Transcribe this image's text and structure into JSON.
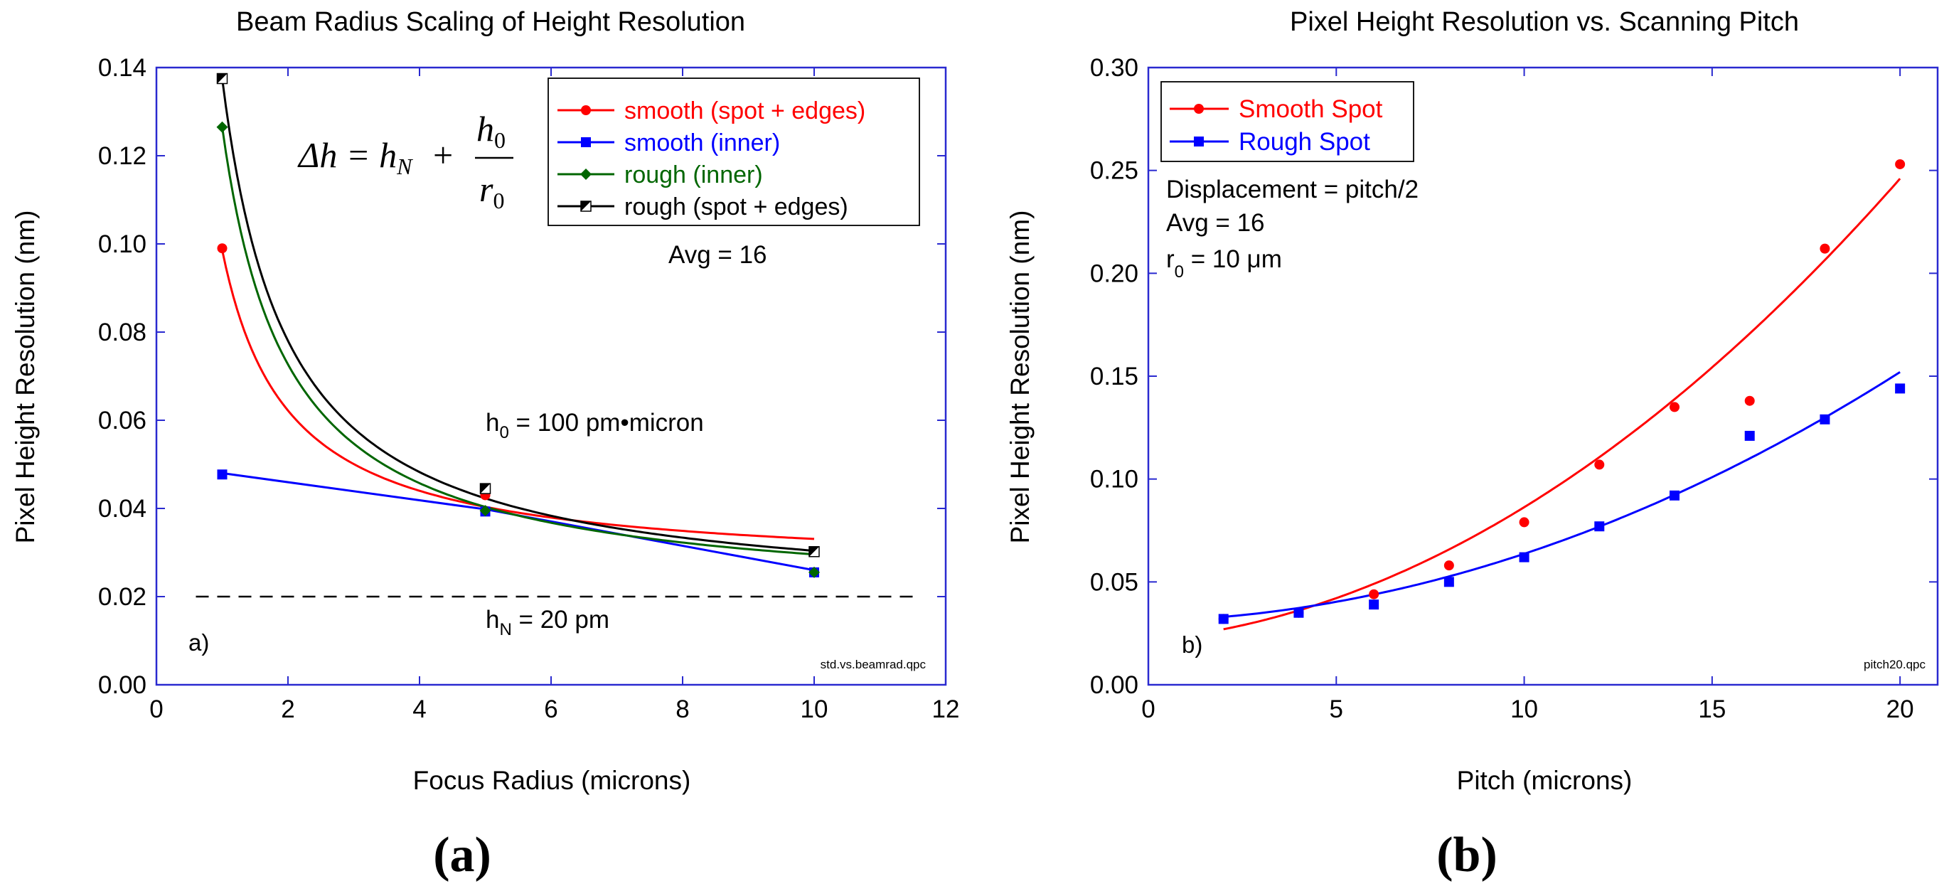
{
  "chart_data": [
    {
      "id": "a",
      "type": "line",
      "panel_label": "(a)",
      "title": "Beam Radius Scaling of Height Resolution",
      "xlabel": "Focus Radius (microns)",
      "ylabel": "Pixel Height Resolution (nm)",
      "xlim": [
        0,
        12
      ],
      "ylim": [
        0,
        0.14
      ],
      "xticks": [
        0,
        2,
        4,
        6,
        8,
        10,
        12
      ],
      "yticks": [
        0.0,
        0.02,
        0.04,
        0.06,
        0.08,
        0.1,
        0.12,
        0.14
      ],
      "xtick_labels": [
        "0",
        "2",
        "4",
        "6",
        "8",
        "10",
        "12"
      ],
      "ytick_labels": [
        "0.00",
        "0.02",
        "0.04",
        "0.06",
        "0.08",
        "0.10",
        "0.12",
        "0.14"
      ],
      "legend_position": "top-right",
      "series": [
        {
          "name": "smooth (spot + edges)",
          "color": "#ff0000",
          "marker": "circle",
          "x": [
            1,
            5,
            10
          ],
          "y": [
            0.099,
            0.043,
            0.0255
          ],
          "fit": {
            "model": "a + b/r",
            "a": 0.0258,
            "b": 0.0728,
            "from": 1,
            "to": 10
          }
        },
        {
          "name": "smooth (inner)",
          "color": "#0000ff",
          "marker": "square",
          "x": [
            1,
            5,
            10
          ],
          "y": [
            0.0477,
            0.0393,
            0.0255
          ],
          "fit": {
            "model": "linear",
            "points": [
              [
                1,
                0.048
              ],
              [
                5,
                0.0398
              ],
              [
                10,
                0.026
              ]
            ]
          }
        },
        {
          "name": "rough (inner)",
          "color": "#006600",
          "marker": "diamond",
          "x": [
            1,
            5,
            10
          ],
          "y": [
            0.1265,
            0.0395,
            0.0255
          ],
          "fit": {
            "model": "a + b/r",
            "a": 0.0188,
            "b": 0.1077,
            "from": 1,
            "to": 10
          }
        },
        {
          "name": "rough (spot + edges)",
          "color": "#000000",
          "marker": "half-square",
          "x": [
            1,
            5,
            10
          ],
          "y": [
            0.1375,
            0.0445,
            0.0302
          ],
          "fit": {
            "model": "a + b/r",
            "a": 0.0185,
            "b": 0.119,
            "from": 1,
            "to": 10
          }
        }
      ],
      "reference_line": {
        "label": "h_N = 20 pm",
        "y": 0.02,
        "x_from": 0.6,
        "x_to": 11.5,
        "style": "dashed",
        "color": "#000000"
      },
      "annotations": {
        "formula": {
          "lhs": "Δh = h",
          "sub_n": "N",
          "plus": "+",
          "num": "h",
          "num_sub": "0",
          "den": "r",
          "den_sub": "0"
        },
        "avg": "Avg = 16",
        "h0": {
          "main": "h",
          "sub": "0",
          "rest": " = 100 pm•micron"
        },
        "hn": {
          "main": "h",
          "sub": "N",
          "rest": " = 20 pm"
        },
        "corner": "a)",
        "filename": "std.vs.beamrad.qpc"
      }
    },
    {
      "id": "b",
      "type": "scatter",
      "panel_label": "(b)",
      "title": "Pixel Height Resolution vs. Scanning Pitch",
      "xlabel": "Pitch (microns)",
      "ylabel": "Pixel Height Resolution (nm)",
      "xlim": [
        0,
        21
      ],
      "ylim": [
        0,
        0.3
      ],
      "xticks": [
        0,
        5,
        10,
        15,
        20
      ],
      "yticks": [
        0.0,
        0.05,
        0.1,
        0.15,
        0.2,
        0.25,
        0.3
      ],
      "xtick_labels": [
        "0",
        "5",
        "10",
        "15",
        "20"
      ],
      "ytick_labels": [
        "0.00",
        "0.05",
        "0.10",
        "0.15",
        "0.20",
        "0.25",
        "0.30"
      ],
      "legend_position": "top-left",
      "series": [
        {
          "name": "Smooth Spot",
          "color": "#ff0000",
          "marker": "circle",
          "x": [
            2,
            4,
            6,
            8,
            10,
            12,
            14,
            16,
            18,
            20
          ],
          "y": [
            0.032,
            0.035,
            0.044,
            0.058,
            0.079,
            0.107,
            0.135,
            0.138,
            0.212,
            0.253
          ],
          "fit": {
            "model": "quadratic",
            "points": [
              [
                2,
                0.027
              ],
              [
                11,
                0.098
              ],
              [
                20,
                0.246
              ]
            ],
            "from": 2,
            "to": 20
          }
        },
        {
          "name": "Rough Spot",
          "color": "#0000ff",
          "marker": "square",
          "x": [
            2,
            4,
            6,
            8,
            10,
            12,
            14,
            16,
            18,
            20
          ],
          "y": [
            0.032,
            0.035,
            0.039,
            0.05,
            0.062,
            0.077,
            0.092,
            0.121,
            0.129,
            0.144
          ],
          "fit": {
            "model": "quadratic",
            "points": [
              [
                2,
                0.033
              ],
              [
                11,
                0.07
              ],
              [
                20,
                0.152
              ]
            ],
            "from": 2,
            "to": 20
          }
        }
      ],
      "annotations": {
        "displacement": "Displacement = pitch/2",
        "avg": "Avg = 16",
        "r0": {
          "main": "r",
          "sub": "0",
          "rest": " = 10 μm"
        },
        "corner": "b)",
        "filename": "pitch20.qpc"
      }
    }
  ]
}
